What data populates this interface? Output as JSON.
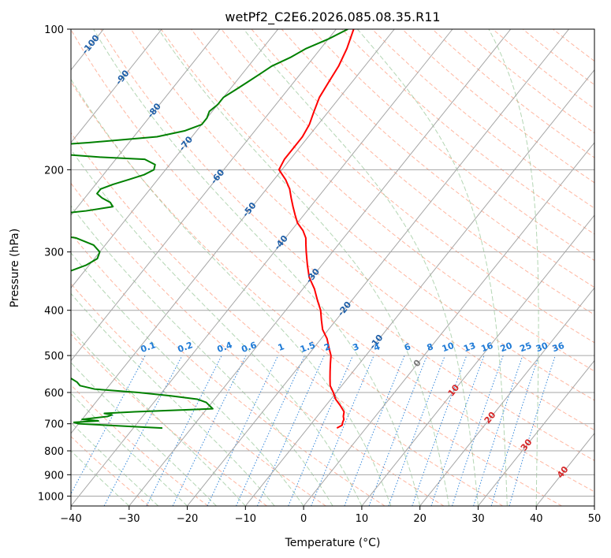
{
  "chart_data": {
    "type": "line",
    "title": "wetPf2_C2E6.2026.085.08.35.R11",
    "xlabel": "Temperature (°C)",
    "ylabel": "Pressure (hPa)",
    "xlim": [
      -40,
      50
    ],
    "ylim": [
      1050,
      100
    ],
    "y_scale": "log",
    "grid": true,
    "x_ticks": [
      "−40",
      "−30",
      "−20",
      "−10",
      "0",
      "10",
      "20",
      "30",
      "40",
      "50"
    ],
    "y_ticks": [
      "100",
      "200",
      "300",
      "400",
      "500",
      "600",
      "700",
      "800",
      "900",
      "1000"
    ],
    "series": [
      {
        "color": "#ff0000",
        "pressure": [
          715,
          705,
          695,
          685,
          675,
          660,
          640,
          620,
          600,
          580,
          560,
          540,
          520,
          500,
          480,
          460,
          440,
          420,
          400,
          380,
          360,
          340,
          320,
          300,
          290,
          280,
          270,
          260,
          250,
          240,
          230,
          220,
          210,
          200,
          190,
          180,
          170,
          160,
          150,
          140,
          130,
          120,
          110,
          100
        ],
        "temperature": [
          -5.0,
          -4.5,
          -4.8,
          -5.0,
          -5.5,
          -6.0,
          -7.5,
          -9.2,
          -10.5,
          -12.0,
          -13.0,
          -14.0,
          -15.0,
          -16.0,
          -17.5,
          -19.0,
          -21.0,
          -22.5,
          -24.0,
          -26.0,
          -28.0,
          -30.5,
          -32.5,
          -34.5,
          -35.5,
          -36.5,
          -38.0,
          -40.0,
          -41.5,
          -43.0,
          -44.5,
          -46.0,
          -48.0,
          -50.5,
          -51.0,
          -51.0,
          -51.0,
          -51.5,
          -52.5,
          -53.5,
          -54.0,
          -54.5,
          -55.5,
          -57.0
        ]
      },
      {
        "color": "#008000",
        "pressure": [
          715,
          710,
          705,
          700,
          695,
          690,
          685,
          680,
          675,
          670,
          665,
          660,
          650,
          640,
          630,
          620,
          610,
          600,
          590,
          580,
          570,
          560,
          550,
          540,
          530,
          520,
          510,
          500,
          490,
          480,
          470,
          460,
          450,
          440,
          430,
          420,
          410,
          400,
          395,
          390,
          385,
          380,
          375,
          370,
          365,
          360,
          355,
          350,
          345,
          340,
          330,
          320,
          310,
          300,
          290,
          280,
          272,
          265,
          262,
          260,
          255,
          250,
          245,
          240,
          235,
          230,
          225,
          220,
          215,
          210,
          205,
          200,
          195,
          190,
          188,
          185,
          182,
          180,
          178,
          175,
          170,
          165,
          160,
          155,
          150,
          145,
          140,
          135,
          130,
          125,
          120,
          115,
          110,
          105,
          100
        ],
        "dewpoint": [
          -35.0,
          -40.0,
          -45.0,
          -50.0,
          -51.0,
          -47.0,
          -50.0,
          -48.0,
          -46.0,
          -45.5,
          -47.0,
          -42.0,
          -29.0,
          -30.0,
          -31.0,
          -33.0,
          -38.0,
          -44.0,
          -52.0,
          -55.0,
          -56.0,
          -57.5,
          -60.0,
          -62.0,
          -64.0,
          -66.0,
          -67.0,
          -68.0,
          -70.0,
          -72.0,
          -75.0,
          -78.0,
          -82.0,
          -87.0,
          -92.0,
          -96.0,
          -100.0,
          -103.0,
          -103.0,
          -98.0,
          -94.0,
          -91.0,
          -88.0,
          -86.0,
          -84.0,
          -83.0,
          -81.5,
          -79.5,
          -77.5,
          -76.0,
          -72.5,
          -70.5,
          -69.5,
          -70.0,
          -72.0,
          -76.0,
          -84.0,
          -90.0,
          -92.0,
          -92.0,
          -90.0,
          -84.0,
          -78.0,
          -74.0,
          -75.0,
          -77.0,
          -78.5,
          -78.5,
          -77.0,
          -75.0,
          -73.0,
          -72.0,
          -72.5,
          -75.0,
          -83.0,
          -91.0,
          -95.0,
          -95.5,
          -95.0,
          -87.0,
          -76.0,
          -72.0,
          -70.0,
          -70.0,
          -70.5,
          -70.0,
          -70.0,
          -69.0,
          -68.0,
          -67.0,
          -66.0,
          -64.0,
          -62.5,
          -60.0,
          -58.0
        ]
      }
    ],
    "isotherm_labels": [
      "-100",
      "-90",
      "-80",
      "-70",
      "-60",
      "-50",
      "-40",
      "-30",
      "-20",
      "-10",
      "0",
      "10",
      "20",
      "30",
      "40"
    ],
    "mixing_ratio_labels": [
      "0.1",
      "0.2",
      "0.4",
      "0.6",
      "1",
      "1.5",
      "2",
      "3",
      "4",
      "6",
      "8",
      "10",
      "13",
      "16",
      "20",
      "25",
      "30",
      "36"
    ]
  },
  "colors": {
    "temperature": "#ff0000",
    "dewpoint": "#008000",
    "isotherm": "#a6a6a6",
    "dry_adiabat": "#ff9e80",
    "moist_adiabat": "#8cc08c",
    "mixing_ratio": "#1e7ad6",
    "isotherm_label": "#1f5fa8",
    "isotherm_label_warm": "#d62728",
    "isotherm_label_zero": "#777777"
  }
}
